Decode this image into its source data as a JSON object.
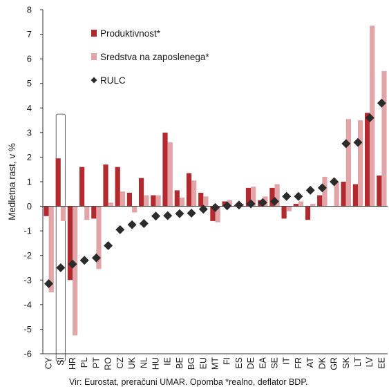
{
  "chart_data": {
    "type": "bar",
    "ylabel": "Medletna rast, v %",
    "ylim": [
      -6,
      8
    ],
    "yticks": [
      -6,
      -5,
      -4,
      -3,
      -2,
      -1,
      0,
      1,
      2,
      3,
      4,
      5,
      6,
      7,
      8
    ],
    "grid": false,
    "legend_position": "top-left",
    "highlight_category": "SI",
    "source_note": "Vir: Eurostat, preračuni UMAR. Opomba *realno, deflator BDP.",
    "categories": [
      "CY",
      "SI",
      "HR",
      "PL",
      "PT",
      "RO",
      "CZ",
      "UK",
      "NL",
      "HU",
      "IE",
      "BE",
      "BG",
      "EU",
      "MT",
      "FI",
      "ES",
      "DE",
      "EA",
      "SE",
      "IT",
      "FR",
      "AT",
      "DK",
      "GR",
      "SK",
      "LT",
      "LV",
      "EE"
    ],
    "series": [
      {
        "name": "Produktivnost*",
        "kind": "bar",
        "color": "#b22a2e",
        "values": [
          -0.4,
          1.95,
          -3.0,
          1.6,
          -0.5,
          1.7,
          1.6,
          0.55,
          1.15,
          0.45,
          3.0,
          0.65,
          1.35,
          0.55,
          -0.6,
          0.2,
          0.05,
          0.75,
          0.25,
          0.75,
          -0.5,
          0.1,
          -0.55,
          0.45,
          0.0,
          1.0,
          0.9,
          3.8,
          1.25
        ]
      },
      {
        "name": "Sredstva na zaposlenega*",
        "kind": "bar",
        "color": "#e3a4a7",
        "values": [
          -3.5,
          -0.6,
          -5.25,
          -0.55,
          -2.55,
          0.15,
          0.6,
          -0.25,
          0.45,
          0.45,
          2.6,
          0.35,
          1.05,
          0.4,
          -0.65,
          0.25,
          0.1,
          0.8,
          0.4,
          0.9,
          -0.2,
          0.2,
          0.1,
          1.2,
          1.0,
          3.55,
          3.5,
          7.35,
          5.5
        ]
      },
      {
        "name": "RULC",
        "kind": "marker",
        "color": "#2b2b2b",
        "values": [
          -3.15,
          -2.5,
          -2.35,
          -2.2,
          -2.1,
          -1.6,
          -0.95,
          -0.75,
          -0.7,
          -0.4,
          -0.38,
          -0.3,
          -0.28,
          -0.12,
          -0.05,
          0.02,
          0.05,
          0.1,
          0.15,
          0.2,
          0.4,
          0.4,
          0.65,
          0.75,
          1.0,
          2.55,
          2.6,
          3.6,
          4.2
        ]
      }
    ]
  }
}
